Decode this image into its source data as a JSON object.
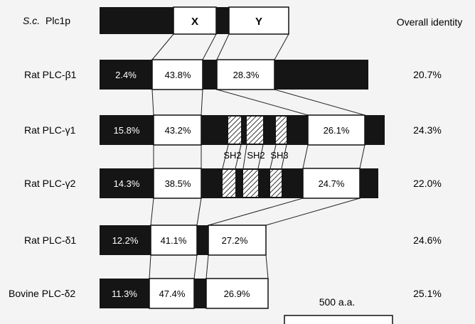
{
  "header": {
    "sc_species": "S.c.",
    "sc_protein": "Plc1p",
    "overall_identity": "Overall identity"
  },
  "domains": {
    "x": "X",
    "y": "Y",
    "sh2_a": "SH2",
    "sh2_b": "SH2",
    "sh3": "SH3"
  },
  "rows": [
    {
      "name": "Rat PLC-β1",
      "pct": [
        "2.4%",
        "43.8%",
        "28.3%"
      ],
      "overall": "20.7%"
    },
    {
      "name": "Rat PLC-γ1",
      "pct": [
        "15.8%",
        "43.2%",
        "26.1%"
      ],
      "overall": "24.3%"
    },
    {
      "name": "Rat PLC-γ2",
      "pct": [
        "14.3%",
        "38.5%",
        "24.7%"
      ],
      "overall": "22.0%"
    },
    {
      "name": "Rat PLC-δ1",
      "pct": [
        "12.2%",
        "41.1%",
        "27.2%"
      ],
      "overall": "24.6%"
    },
    {
      "name": "Bovine PLC-δ2",
      "pct": [
        "11.3%",
        "47.4%",
        "26.9%"
      ],
      "overall": "25.1%"
    }
  ],
  "scale_bar": {
    "label": "500 a.a."
  },
  "colors": {
    "black_segment": "#151515",
    "white_segment": "#ffffff",
    "background": "#f4f4f4"
  }
}
